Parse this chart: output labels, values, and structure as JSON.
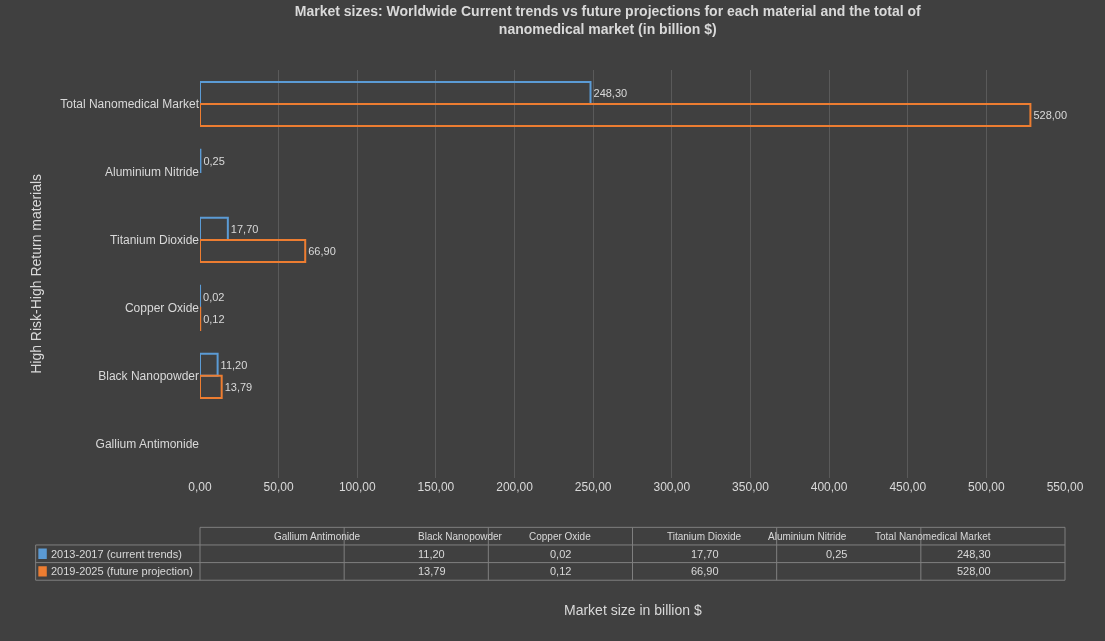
{
  "chart_data": {
    "type": "bar",
    "orientation": "horizontal",
    "title": "Market sizes: Worldwide Current trends vs future projections for each material and the total of nanomedical market (in billion $)",
    "annotations": [
      "Market size in billion $"
    ],
    "ylabel": "High Risk-High Return materials",
    "categories": [
      "Total Nanomedical Market",
      "Aluminium Nitride",
      "Titanium Dioxide",
      "Copper Oxide",
      "Black Nanopowder",
      "Gallium Antimonide"
    ],
    "series": [
      {
        "name": "2013-2017 (current trends)",
        "color": "#5b9bd5",
        "values": [
          248.3,
          0.25,
          17.7,
          0.02,
          11.2,
          null
        ],
        "value_labels": [
          "248,30",
          "0,25",
          "17,70",
          "0,02",
          "11,20",
          null
        ]
      },
      {
        "name": "2019-2025 (future projection)",
        "color": "#ed7d31",
        "values": [
          528.0,
          null,
          66.9,
          0.12,
          13.79,
          null
        ],
        "value_labels": [
          "528,00",
          null,
          "66,90",
          "0,12",
          "13,79",
          null
        ]
      }
    ],
    "xlim": [
      0,
      550
    ],
    "xticks": [
      {
        "value": 0,
        "label": "0,00"
      },
      {
        "value": 50,
        "label": "50,00"
      },
      {
        "value": 100,
        "label": "100,00"
      },
      {
        "value": 150,
        "label": "150,00"
      },
      {
        "value": 200,
        "label": "200,00"
      },
      {
        "value": 250,
        "label": "250,00"
      },
      {
        "value": 300,
        "label": "300,00"
      },
      {
        "value": 350,
        "label": "350,00"
      },
      {
        "value": 400,
        "label": "400,00"
      },
      {
        "value": 450,
        "label": "450,00"
      },
      {
        "value": 500,
        "label": "500,00"
      },
      {
        "value": 550,
        "label": "550,00"
      }
    ],
    "grid": "x",
    "legend": "bottom"
  }
}
